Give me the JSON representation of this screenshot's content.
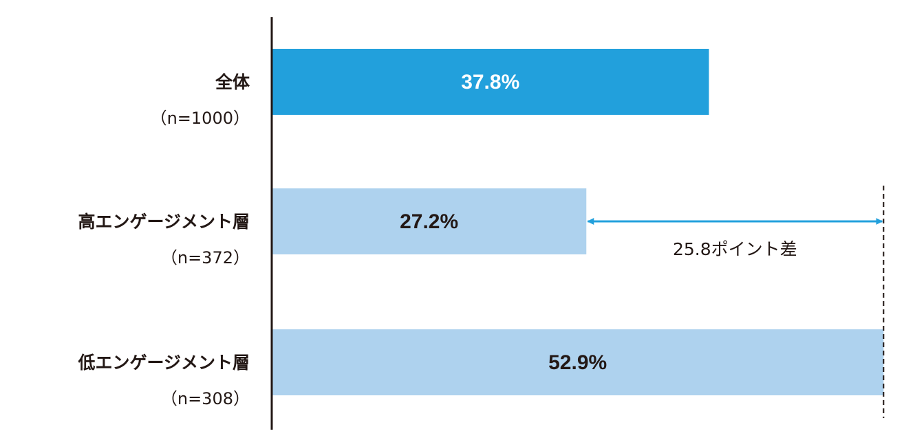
{
  "chart_data": {
    "type": "hbar",
    "categories": [
      "全体",
      "高エンゲージメント層",
      "低エンゲージメント層"
    ],
    "category_notes": [
      "（n=1000）",
      "（n=372）",
      "（n=308）"
    ],
    "values": [
      37.8,
      27.2,
      52.9
    ],
    "value_labels": [
      "37.8%",
      "27.2%",
      "52.9%"
    ],
    "colors": [
      "#22a0dc",
      "#aed2ee",
      "#aed2ee"
    ],
    "value_label_colors": [
      "#ffffff",
      "#231815",
      "#231815"
    ],
    "xlim": [
      0,
      53
    ],
    "annotation": "25.8ポイント差",
    "annotation_color": "#22a0dc"
  }
}
